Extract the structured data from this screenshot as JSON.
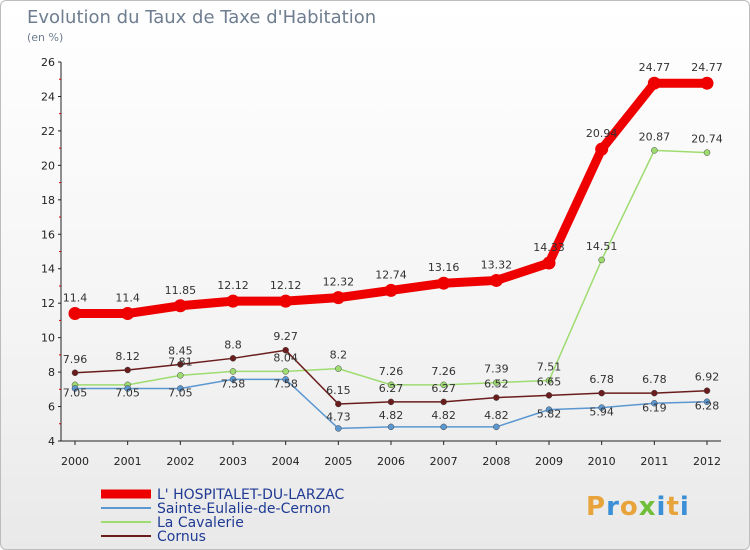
{
  "title": "Evolution du Taux de Taxe d'Habitation",
  "unit_label": "(en %)",
  "logo": {
    "letters": [
      "P",
      "r",
      "o",
      "x",
      "i",
      "t",
      "i"
    ],
    "colors": [
      "#e8a33a",
      "#3a8fd6",
      "#e8a33a",
      "#6fbf3a",
      "#3a8fd6",
      "#e8a33a",
      "#3a8fd6"
    ]
  },
  "chart_data": {
    "type": "line",
    "x": [
      "2000",
      "2001",
      "2002",
      "2003",
      "2004",
      "2005",
      "2006",
      "2007",
      "2008",
      "2009",
      "2010",
      "2011",
      "2012"
    ],
    "ylim": [
      4,
      26
    ],
    "yticks": [
      "4",
      "6",
      "8",
      "10",
      "12",
      "14",
      "16",
      "18",
      "20",
      "22",
      "24",
      "26"
    ],
    "grid": false,
    "legend_position": "bottom-left",
    "series": [
      {
        "name": "L' HOSPITALET-DU-LARZAC",
        "color": "#ee0000",
        "width": 9,
        "values": [
          11.4,
          11.4,
          11.85,
          12.12,
          12.12,
          12.32,
          12.74,
          13.16,
          13.32,
          14.33,
          20.94,
          24.77,
          24.77
        ],
        "labels": [
          "11.4",
          "11.4",
          "11.85",
          "12.12",
          "12.12",
          "12.32",
          "12.74",
          "13.16",
          "13.32",
          "14.33",
          "20.94",
          "24.77",
          "24.77"
        ],
        "label_pos": "above"
      },
      {
        "name": "Sainte-Eulalie-de-Cernon",
        "color": "#5b97d1",
        "width": 1.5,
        "values": [
          7.05,
          7.05,
          7.05,
          7.58,
          7.58,
          4.73,
          4.82,
          4.82,
          4.82,
          5.82,
          5.94,
          6.19,
          6.28
        ],
        "labels": [
          "7.05",
          "7.05",
          "7.05",
          "7.58",
          "7.58",
          "4.73",
          "4.82",
          "4.82",
          "4.82",
          "5.82",
          "5.94",
          "6.19",
          "6.28"
        ],
        "label_pos": "mixed"
      },
      {
        "name": "La Cavalerie",
        "color": "#9edc70",
        "width": 1.5,
        "values": [
          7.26,
          7.26,
          7.81,
          8.04,
          8.04,
          8.2,
          7.26,
          7.26,
          7.39,
          7.51,
          14.51,
          20.87,
          20.74
        ],
        "labels": [
          "",
          "",
          "7.81",
          "",
          "8.04",
          "8.2",
          "7.26",
          "7.26",
          "7.39",
          "7.51",
          "14.51",
          "20.87",
          "20.74"
        ],
        "label_pos": "above"
      },
      {
        "name": "Cornus",
        "color": "#6b1c1c",
        "width": 1.5,
        "values": [
          7.96,
          8.12,
          8.45,
          8.8,
          9.27,
          6.15,
          6.27,
          6.27,
          6.52,
          6.65,
          6.78,
          6.78,
          6.92
        ],
        "labels": [
          "7.96",
          "8.12",
          "8.45",
          "8.8",
          "9.27",
          "6.15",
          "6.27",
          "6.27",
          "6.52",
          "6.65",
          "6.78",
          "6.78",
          "6.92"
        ],
        "label_pos": "above"
      }
    ]
  }
}
